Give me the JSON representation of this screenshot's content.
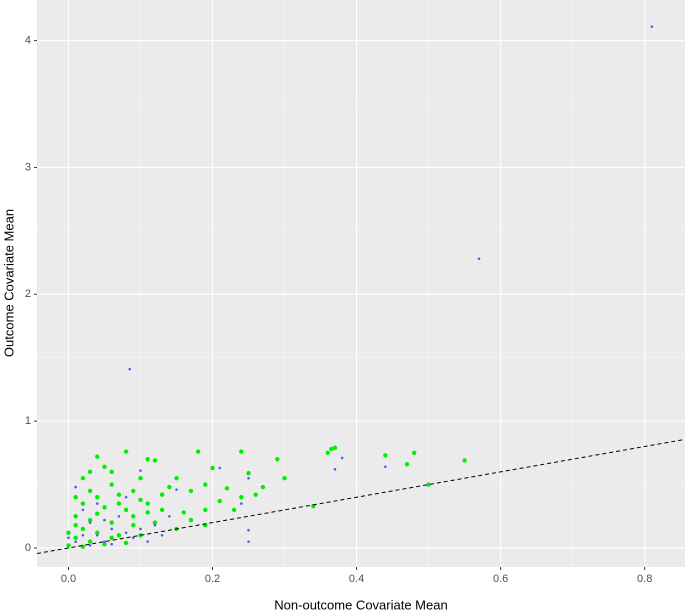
{
  "chart_data": {
    "type": "scatter",
    "x_label": "Non-outcome Covariate Mean",
    "y_label": "Outcome Covariate Mean",
    "xlim": [
      -0.0437,
      0.856
    ],
    "ylim": [
      -0.15,
      4.32
    ],
    "xticks": [
      {
        "value": 0,
        "label": "0.0"
      },
      {
        "value": 0.2,
        "label": "0.2"
      },
      {
        "value": 0.4,
        "label": "0.4"
      },
      {
        "value": 0.6,
        "label": "0.6"
      },
      {
        "value": 0.8,
        "label": "0.8"
      }
    ],
    "yticks": [
      0,
      1,
      2,
      3,
      4
    ],
    "grid": true,
    "reference_line": {
      "slope": 1,
      "intercept": 0,
      "color": "#000000"
    },
    "series": [
      {
        "color": "#00ee00",
        "marker_size": 2.2,
        "x": [
          0.08,
          0.18,
          0.24,
          0.29,
          0.36,
          0.37,
          0.365,
          0.44,
          0.47,
          0.48,
          0.55,
          0.5,
          0.25,
          0.2,
          0.12,
          0.11,
          0.04,
          0.05,
          0.06,
          0.03,
          0.02,
          0.1,
          0.15,
          0.19,
          0.27,
          0.3,
          0.22,
          0.17,
          0.14,
          0.09,
          0.07,
          0.04,
          0.01,
          0.02,
          0.05,
          0.08,
          0.11,
          0.13,
          0.16,
          0.19,
          0.21,
          0.24,
          0.23,
          0.34,
          0.01,
          0.03,
          0.06,
          0.09,
          0.12,
          0.15,
          0.19,
          0.02,
          0.04,
          0.07,
          0.1,
          0.01,
          0.03,
          0.05,
          0.08,
          0.0,
          0.02,
          0.06,
          0.09,
          0.11,
          0.04,
          0.07,
          0.0,
          0.01,
          0.13,
          0.1,
          0.06,
          0.03,
          0.17,
          0.26
        ],
        "values": [
          0.76,
          0.76,
          0.76,
          0.7,
          0.75,
          0.79,
          0.78,
          0.73,
          0.66,
          0.75,
          0.69,
          0.5,
          0.59,
          0.63,
          0.69,
          0.7,
          0.72,
          0.64,
          0.6,
          0.6,
          0.55,
          0.55,
          0.55,
          0.5,
          0.48,
          0.55,
          0.47,
          0.45,
          0.48,
          0.45,
          0.42,
          0.4,
          0.4,
          0.35,
          0.32,
          0.3,
          0.35,
          0.3,
          0.28,
          0.3,
          0.37,
          0.4,
          0.3,
          0.33,
          0.25,
          0.22,
          0.2,
          0.18,
          0.2,
          0.15,
          0.18,
          0.15,
          0.12,
          0.1,
          0.1,
          0.08,
          0.05,
          0.03,
          0.04,
          0.02,
          0.01,
          0.08,
          0.25,
          0.28,
          0.27,
          0.35,
          0.12,
          0.18,
          0.42,
          0.38,
          0.5,
          0.45,
          0.22,
          0.42
        ]
      },
      {
        "color": "#5a5ae6",
        "marker_size": 1.3,
        "x": [
          0.81,
          0.57,
          0.085,
          0.38,
          0.37,
          0.44,
          0.21,
          0.25,
          0.25,
          0.25,
          0.24,
          0.1,
          0.15,
          0.01,
          0.02,
          0.03,
          0.04,
          0.05,
          0.06,
          0.07,
          0.08,
          0.09,
          0.1,
          0.11,
          0.12,
          0.01,
          0.02,
          0.03,
          0.04,
          0.06,
          0.0,
          0.05,
          0.13,
          0.14,
          0.08
        ],
        "values": [
          4.11,
          2.28,
          1.41,
          0.71,
          0.62,
          0.64,
          0.63,
          0.55,
          0.14,
          0.05,
          0.35,
          0.61,
          0.46,
          0.48,
          0.3,
          0.2,
          0.1,
          0.05,
          0.15,
          0.25,
          0.12,
          0.08,
          0.15,
          0.05,
          0.18,
          0.05,
          0.1,
          0.02,
          0.35,
          0.03,
          0.08,
          0.22,
          0.1,
          0.25,
          0.4
        ]
      }
    ]
  }
}
